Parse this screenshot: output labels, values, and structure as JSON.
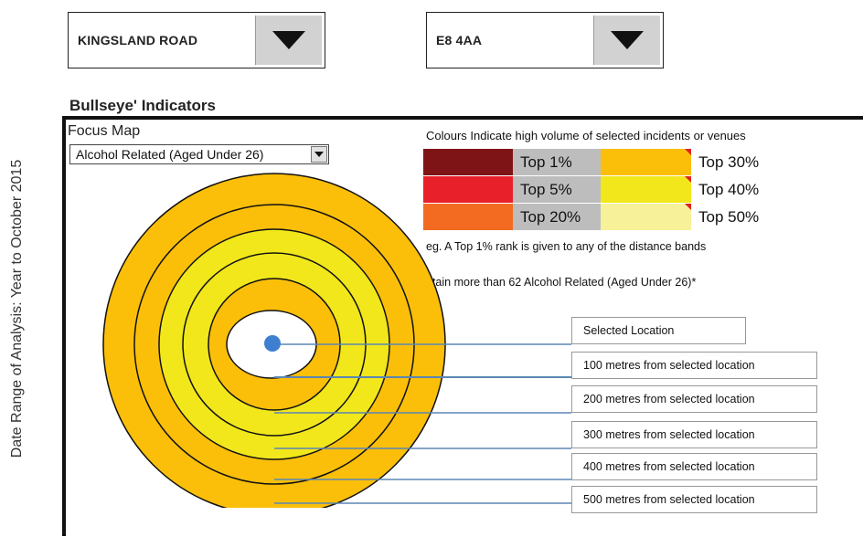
{
  "date_range_label": "Date Range of Analysis:  Year to October 2015",
  "street_combo": {
    "value": "KINGSLAND ROAD",
    "icon": "triangle-down-icon"
  },
  "postcode_combo": {
    "value": "E8 4AA",
    "icon": "triangle-down-icon"
  },
  "section_title": "Bullseye' Indicators",
  "focus_map": {
    "title": "Focus Map",
    "selected": "Alcohol Related (Aged Under 26)"
  },
  "legend": {
    "heading": "Colours Indicate high volume of selected incidents or venues",
    "items": [
      {
        "label": "Top 1%",
        "color": "#7f1416"
      },
      {
        "label": "Top 5%",
        "color": "#e8202a"
      },
      {
        "label": "Top 20%",
        "color": "#f26b21"
      },
      {
        "label": "Top 30%",
        "color": "#fbbf0a"
      },
      {
        "label": "Top 40%",
        "color": "#f1e71b"
      },
      {
        "label": "Top 50%",
        "color": "#f7f19a"
      }
    ]
  },
  "notes": {
    "line1": "eg. A Top 1% rank is given to any of the distance bands",
    "line2": "ntain more than 62 Alcohol Related (Aged Under 26)*"
  },
  "bands": [
    {
      "label": "Selected Location"
    },
    {
      "label": "100 metres from selected location"
    },
    {
      "label": "200 metres from selected location"
    },
    {
      "label": "300 metres from selected location"
    },
    {
      "label": "400 metres from selected location"
    },
    {
      "label": "500 metres from selected location"
    }
  ],
  "ring_colors": [
    "#fbbf0a",
    "#fbbf0a",
    "#f1e71b",
    "#f1e71b",
    "#fbbf0a",
    "#ffffff"
  ],
  "marker_color": "#3f7fd0",
  "leader_color": "#5b86b5"
}
